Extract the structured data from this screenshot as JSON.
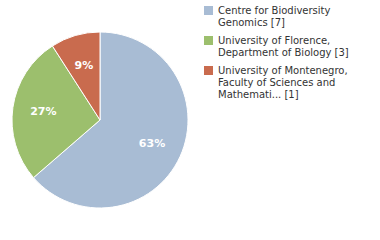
{
  "chart_data": {
    "type": "pie",
    "categories": [
      "Centre for Biodiversity\nGenomics [7]",
      "University of Florence,\nDepartment of Biology [3]",
      "University of Montenegro,\nFaculty of Sciences and\nMathemati... [1]"
    ],
    "values": [
      63,
      27,
      9
    ],
    "value_labels": [
      "63%",
      "27%",
      "9%"
    ],
    "colors": [
      "#a8bcd4",
      "#9cbf6d",
      "#c96b4e"
    ],
    "data_labels": true,
    "legend": "right"
  }
}
